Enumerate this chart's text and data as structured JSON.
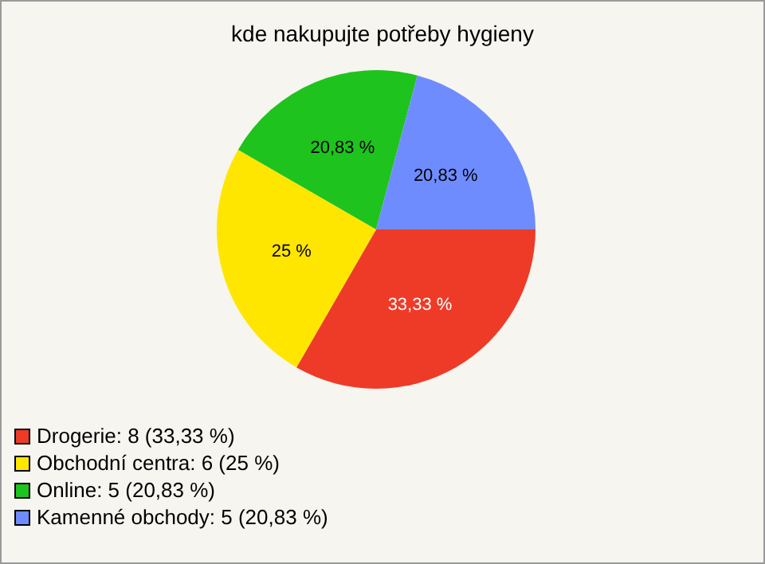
{
  "chart_data": {
    "type": "pie",
    "title": "kde nakupujte potřeby hygieny",
    "categories": [
      "Drogerie: 8 (33,33 %)",
      "Obchodní centra: 6 (25 %)",
      "Online: 5 (20,83 %)",
      "Kamenné obchody: 5 (20,83 %)"
    ],
    "values": [
      33.33,
      25,
      20.83,
      20.83
    ],
    "colors": [
      "#ee3b27",
      "#ffe600",
      "#1ec31e",
      "#6f8cff"
    ],
    "value_labels": [
      "33,33 %",
      "25 %",
      "20,83 %",
      "20,83 %"
    ],
    "legend": "bottom left"
  }
}
